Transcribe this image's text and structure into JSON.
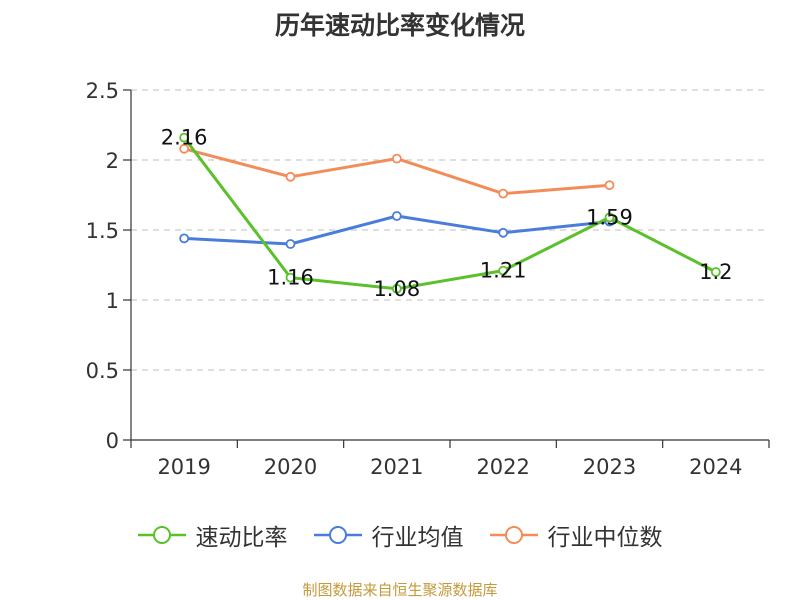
{
  "chart_data": {
    "type": "line",
    "title": "历年速动比率变化情况",
    "categories": [
      "2019",
      "2020",
      "2021",
      "2022",
      "2023",
      "2024"
    ],
    "y_ticks": [
      "0",
      "0.5",
      "1",
      "1.5",
      "2",
      "2.5"
    ],
    "ylim": [
      0,
      2.5
    ],
    "grid": true,
    "legend_position": "bottom",
    "series": [
      {
        "name": "速动比率",
        "color": "#5ac02b",
        "values": [
          2.16,
          1.16,
          1.08,
          1.21,
          1.59,
          1.2
        ],
        "labels": [
          "2.16",
          "1.16",
          "1.08",
          "1.21",
          "1.59",
          "1.2"
        ]
      },
      {
        "name": "行业均值",
        "color": "#4a7ddb",
        "values": [
          1.44,
          1.4,
          1.6,
          1.48,
          1.56,
          null
        ]
      },
      {
        "name": "行业中位数",
        "color": "#f28d5a",
        "values": [
          2.08,
          1.88,
          2.01,
          1.76,
          1.82,
          null
        ]
      }
    ]
  },
  "footer": "制图数据来自恒生聚源数据库"
}
